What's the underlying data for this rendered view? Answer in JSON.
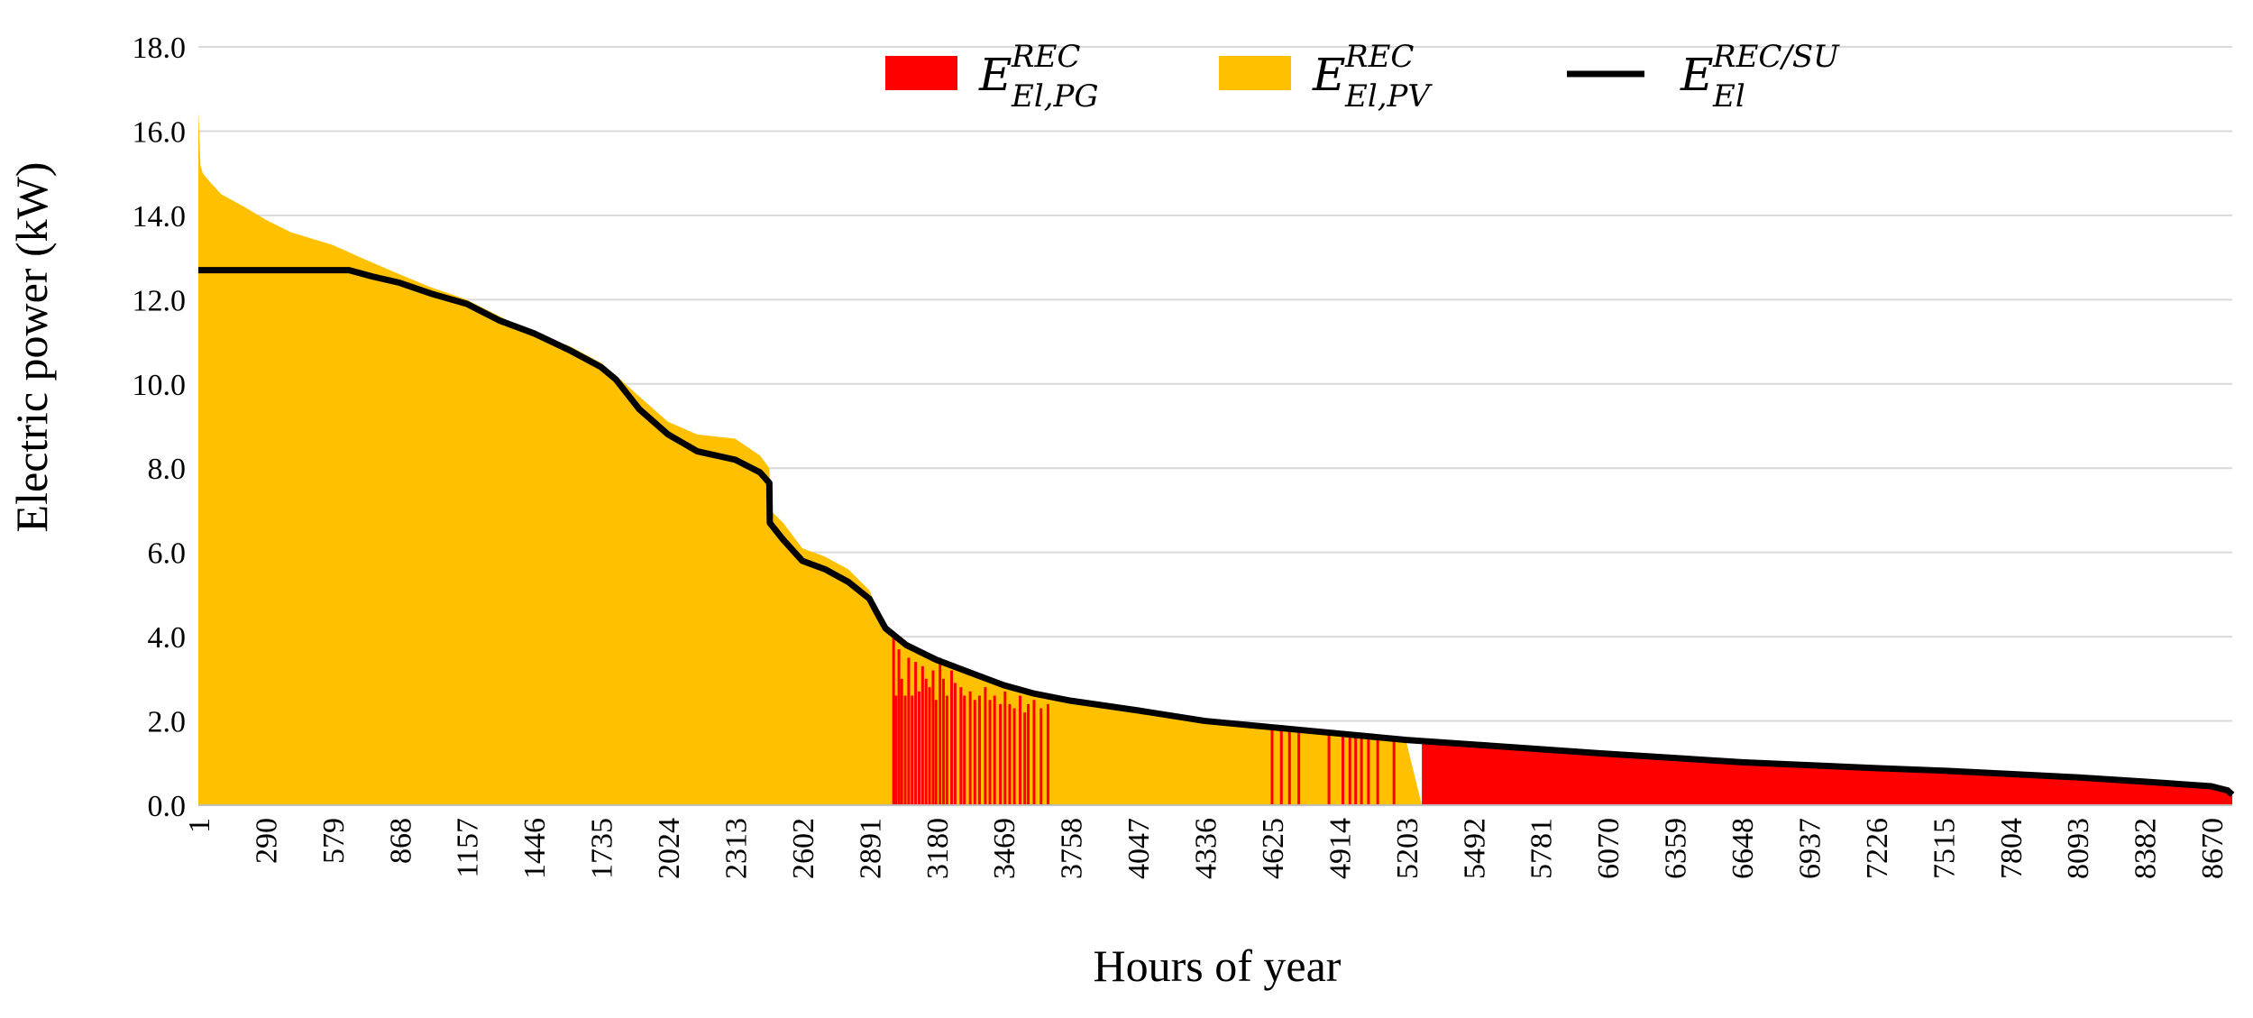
{
  "chart_data": {
    "type": "area",
    "title": "",
    "xlabel": "Hours of year",
    "ylabel": "Electric power (kW)",
    "xlim": [
      1,
      8760
    ],
    "ylim": [
      0,
      18
    ],
    "y_ticks": [
      "0.0",
      "2.0",
      "4.0",
      "6.0",
      "8.0",
      "10.0",
      "12.0",
      "14.0",
      "16.0",
      "18.0"
    ],
    "x_ticks": [
      "1",
      "290",
      "579",
      "868",
      "1157",
      "1446",
      "1735",
      "2024",
      "2313",
      "2602",
      "2891",
      "3180",
      "3469",
      "3758",
      "4047",
      "4336",
      "4625",
      "4914",
      "5203",
      "5492",
      "5781",
      "6070",
      "6359",
      "6648",
      "6937",
      "7226",
      "7515",
      "7804",
      "8093",
      "8382",
      "8670"
    ],
    "grid": "horizontal",
    "legend_position": "top",
    "colors": {
      "pg": "#ff0000",
      "pv": "#ffc000",
      "load": "#000000"
    },
    "legend": [
      {
        "key": "pg",
        "base": "E",
        "sup": "REC",
        "sub": "El,PG",
        "kind": "patch"
      },
      {
        "key": "pv",
        "base": "E",
        "sup": "REC",
        "sub": "El,PV",
        "kind": "patch"
      },
      {
        "key": "load",
        "base": "E",
        "sup": "REC/SU",
        "sub": "El",
        "kind": "line"
      }
    ],
    "series": [
      {
        "name": "E_El,PV^REC (total supply)",
        "key": "pv_top",
        "x": [
          1,
          10,
          20,
          50,
          100,
          200,
          290,
          400,
          579,
          700,
          868,
          1000,
          1157,
          1300,
          1446,
          1600,
          1735,
          1800,
          1900,
          2024,
          2150,
          2313,
          2420,
          2460,
          2465,
          2520,
          2602,
          2700,
          2800,
          2891,
          2920,
          2960,
          3050,
          3180,
          3300,
          3469,
          3600,
          3758,
          4047,
          4336,
          4625,
          4914,
          5203,
          5270,
          8760
        ],
        "values": [
          16.5,
          15.2,
          15.0,
          14.8,
          14.5,
          14.2,
          13.9,
          13.6,
          13.3,
          13.0,
          12.6,
          12.3,
          12.0,
          11.6,
          11.2,
          10.9,
          10.5,
          10.2,
          9.7,
          9.1,
          8.8,
          8.7,
          8.3,
          8.0,
          7.0,
          6.7,
          6.1,
          5.9,
          5.6,
          5.1,
          4.7,
          4.2,
          3.8,
          3.5,
          3.2,
          2.9,
          2.7,
          2.5,
          2.25,
          2.0,
          1.8,
          1.65,
          1.5,
          0,
          0
        ]
      },
      {
        "name": "E_El,PG^REC (grid)",
        "key": "pg_area",
        "x": [
          5270,
          5300,
          5492,
          5781,
          6070,
          6359,
          6648,
          6937,
          7226,
          7515,
          7804,
          8093,
          8382,
          8670,
          8740,
          8760
        ],
        "values": [
          1.55,
          1.52,
          1.44,
          1.33,
          1.22,
          1.12,
          1.02,
          0.95,
          0.88,
          0.82,
          0.74,
          0.66,
          0.56,
          0.45,
          0.35,
          0.25
        ]
      },
      {
        "name": "E_El^REC/SU (load)",
        "key": "load",
        "x": [
          1,
          200,
          400,
          579,
          650,
          750,
          868,
          1000,
          1157,
          1300,
          1446,
          1600,
          1735,
          1800,
          1900,
          2024,
          2150,
          2313,
          2420,
          2460,
          2462,
          2520,
          2602,
          2700,
          2800,
          2891,
          2920,
          2960,
          3050,
          3180,
          3300,
          3469,
          3600,
          3758,
          4047,
          4336,
          4625,
          4914,
          5203,
          5492,
          5781,
          6070,
          6359,
          6648,
          6937,
          7226,
          7515,
          7804,
          8093,
          8382,
          8670,
          8740,
          8760
        ],
        "values": [
          12.7,
          12.7,
          12.7,
          12.7,
          12.7,
          12.55,
          12.4,
          12.15,
          11.9,
          11.5,
          11.2,
          10.8,
          10.4,
          10.1,
          9.4,
          8.8,
          8.4,
          8.2,
          7.9,
          7.65,
          6.7,
          6.3,
          5.8,
          5.6,
          5.3,
          4.9,
          4.6,
          4.2,
          3.8,
          3.45,
          3.2,
          2.85,
          2.65,
          2.48,
          2.25,
          2.0,
          1.85,
          1.7,
          1.55,
          1.44,
          1.33,
          1.22,
          1.12,
          1.02,
          0.95,
          0.88,
          0.82,
          0.74,
          0.66,
          0.56,
          0.45,
          0.35,
          0.25
        ]
      },
      {
        "name": "E_El,PG^REC spikes",
        "key": "pg_spikes",
        "x": [
          2995,
          3005,
          3018,
          3030,
          3045,
          3060,
          3075,
          3090,
          3105,
          3120,
          3135,
          3150,
          3165,
          3178,
          3195,
          3210,
          3225,
          3245,
          3260,
          3285,
          3300,
          3325,
          3345,
          3365,
          3390,
          3410,
          3430,
          3455,
          3475,
          3495,
          3515,
          3540,
          3560,
          3575,
          3600,
          3630,
          3660,
          4625,
          4665,
          4700,
          4740,
          4870,
          4930,
          4960,
          4985,
          5010,
          5040,
          5080,
          5150
        ],
        "values": [
          4.0,
          2.6,
          3.7,
          3.0,
          2.6,
          3.5,
          2.6,
          3.4,
          2.7,
          3.3,
          3.0,
          2.8,
          3.2,
          2.5,
          3.5,
          3.0,
          2.6,
          3.2,
          2.9,
          2.8,
          2.6,
          2.7,
          2.5,
          2.6,
          2.8,
          2.5,
          2.6,
          2.4,
          2.7,
          2.4,
          2.3,
          2.6,
          2.2,
          2.4,
          2.5,
          2.3,
          2.4,
          1.9,
          1.9,
          1.8,
          1.8,
          1.7,
          1.7,
          1.7,
          1.6,
          1.6,
          1.7,
          1.6,
          1.6
        ]
      }
    ]
  }
}
